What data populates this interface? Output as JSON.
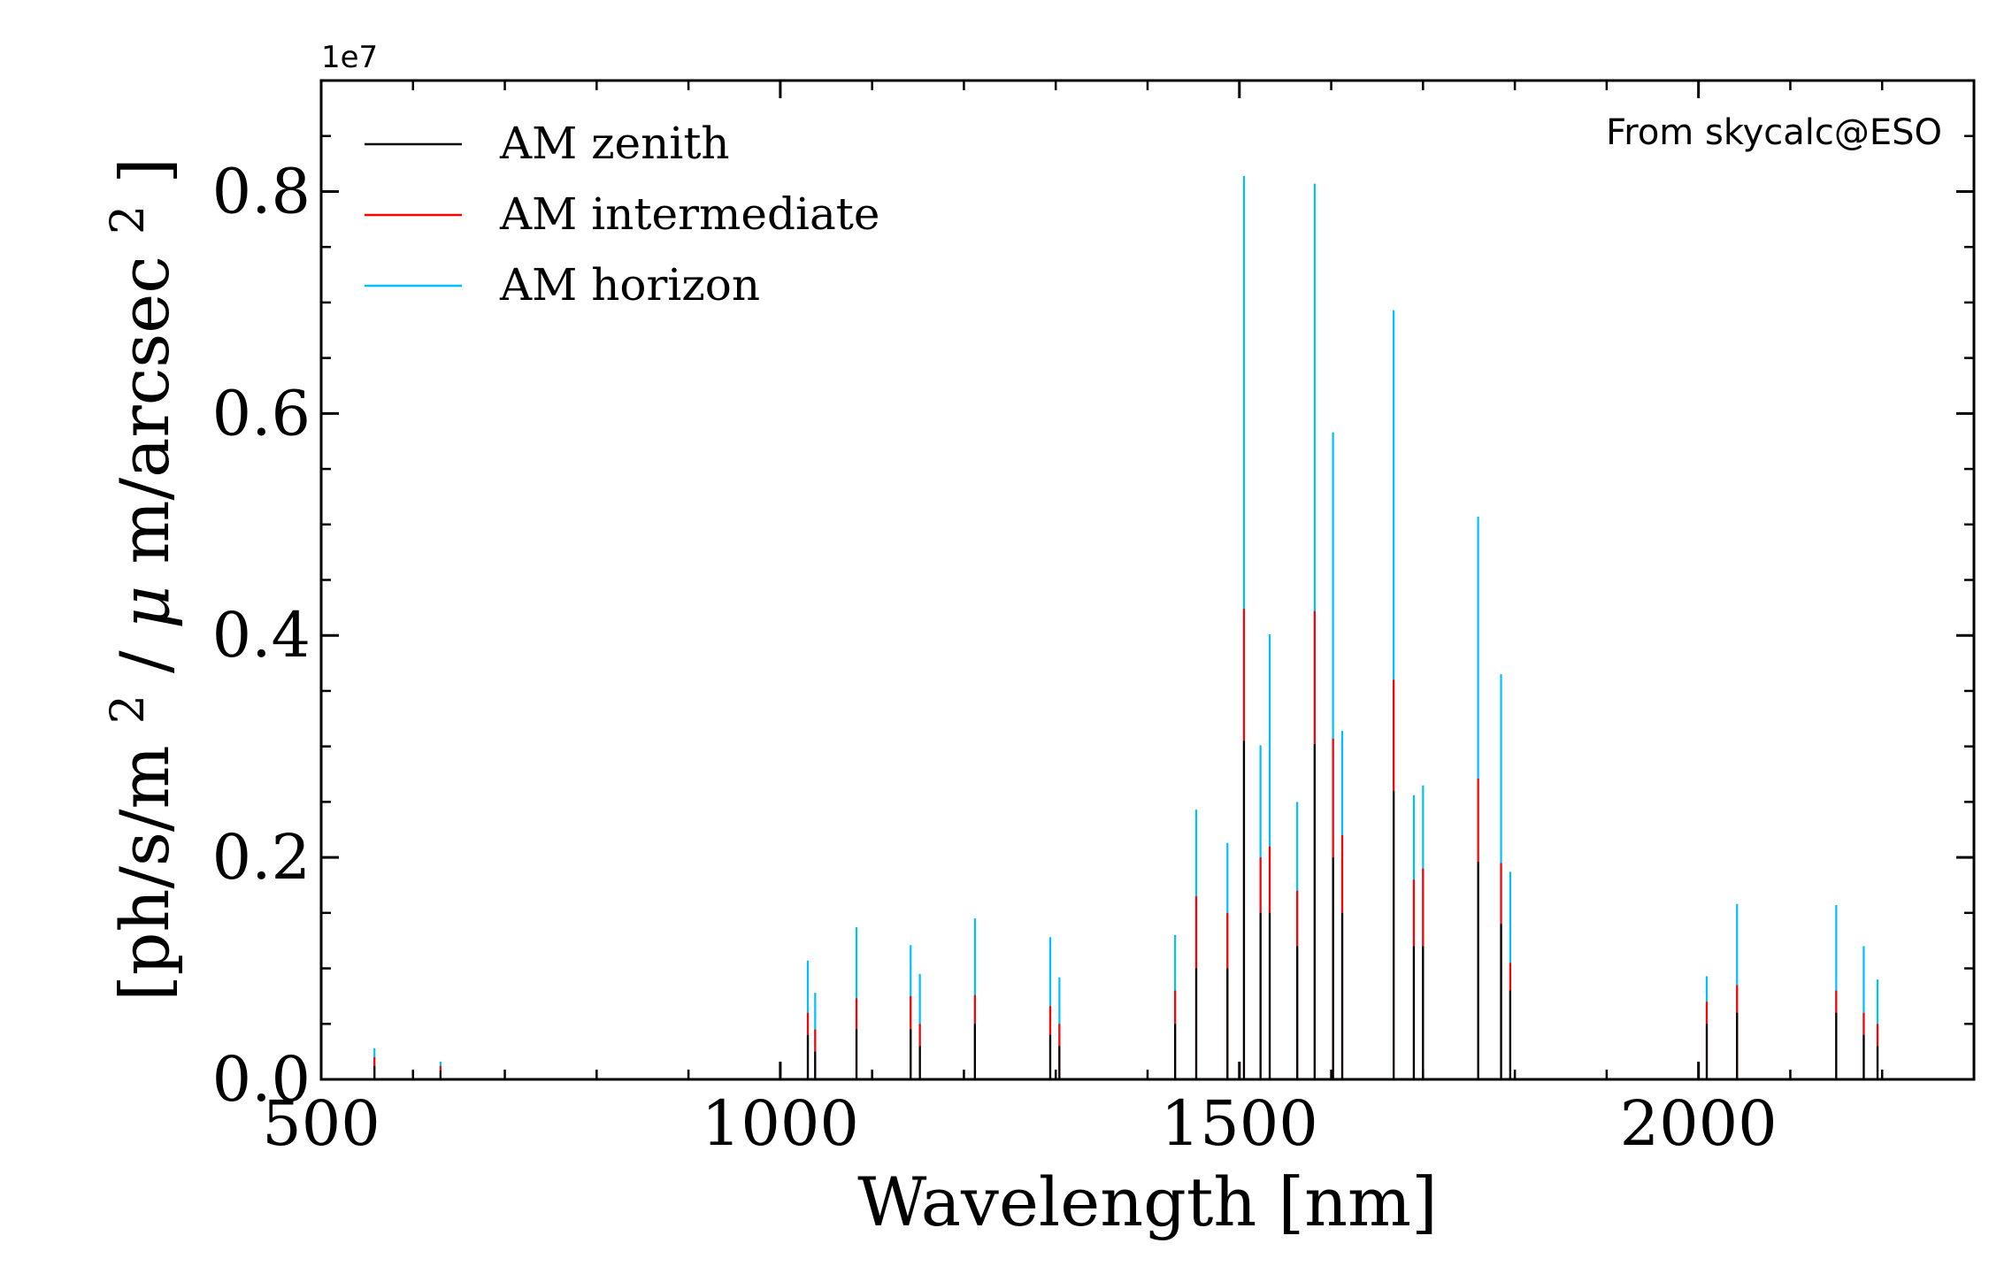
{
  "chart_data": {
    "type": "line",
    "xlabel": "Wavelength [nm]",
    "ylabel_parts": [
      "[ph/s/m",
      "2",
      "/",
      "μ",
      "m/arcsec",
      "2",
      "]"
    ],
    "offset_text": "1e7",
    "annotation": "From skycalc@ESO",
    "xlim": [
      500,
      2300
    ],
    "ylim": [
      0,
      0.9
    ],
    "y_scale_factor": 10000000,
    "xticks": [
      500,
      1000,
      1500,
      2000
    ],
    "xtick_labels": [
      "500",
      "1000",
      "1500",
      "2000"
    ],
    "yticks": [
      0.0,
      0.2,
      0.4,
      0.6,
      0.8
    ],
    "ytick_labels": [
      "0.0",
      "0.2",
      "0.4",
      "0.6",
      "0.8"
    ],
    "grid": false,
    "legend_position": "top-left",
    "series": [
      {
        "name": "AM zenith",
        "color": "#000000"
      },
      {
        "name": "AM intermediate",
        "color": "#ff0000"
      },
      {
        "name": "AM horizon",
        "color": "#00bfff"
      }
    ],
    "lines": [
      {
        "x": 558,
        "zenith": 0.012,
        "intermediate": 0.02,
        "horizon": 0.028
      },
      {
        "x": 630,
        "zenith": 0.008,
        "intermediate": 0.012,
        "horizon": 0.016
      },
      {
        "x": 1030,
        "zenith": 0.04,
        "intermediate": 0.06,
        "horizon": 0.107
      },
      {
        "x": 1038,
        "zenith": 0.025,
        "intermediate": 0.045,
        "horizon": 0.078
      },
      {
        "x": 1083,
        "zenith": 0.045,
        "intermediate": 0.073,
        "horizon": 0.137
      },
      {
        "x": 1142,
        "zenith": 0.045,
        "intermediate": 0.075,
        "horizon": 0.121
      },
      {
        "x": 1152,
        "zenith": 0.03,
        "intermediate": 0.05,
        "horizon": 0.095
      },
      {
        "x": 1212,
        "zenith": 0.05,
        "intermediate": 0.076,
        "horizon": 0.145
      },
      {
        "x": 1294,
        "zenith": 0.04,
        "intermediate": 0.066,
        "horizon": 0.128
      },
      {
        "x": 1304,
        "zenith": 0.03,
        "intermediate": 0.05,
        "horizon": 0.092
      },
      {
        "x": 1430,
        "zenith": 0.05,
        "intermediate": 0.08,
        "horizon": 0.13
      },
      {
        "x": 1453,
        "zenith": 0.1,
        "intermediate": 0.165,
        "horizon": 0.243
      },
      {
        "x": 1487,
        "zenith": 0.1,
        "intermediate": 0.15,
        "horizon": 0.213
      },
      {
        "x": 1505,
        "zenith": 0.305,
        "intermediate": 0.424,
        "horizon": 0.814
      },
      {
        "x": 1523,
        "zenith": 0.15,
        "intermediate": 0.2,
        "horizon": 0.301
      },
      {
        "x": 1533,
        "zenith": 0.15,
        "intermediate": 0.21,
        "horizon": 0.401
      },
      {
        "x": 1563,
        "zenith": 0.12,
        "intermediate": 0.17,
        "horizon": 0.25
      },
      {
        "x": 1582,
        "zenith": 0.302,
        "intermediate": 0.422,
        "horizon": 0.807
      },
      {
        "x": 1602,
        "zenith": 0.2,
        "intermediate": 0.307,
        "horizon": 0.583
      },
      {
        "x": 1612,
        "zenith": 0.15,
        "intermediate": 0.22,
        "horizon": 0.314
      },
      {
        "x": 1668,
        "zenith": 0.26,
        "intermediate": 0.36,
        "horizon": 0.693
      },
      {
        "x": 1690,
        "zenith": 0.12,
        "intermediate": 0.18,
        "horizon": 0.256
      },
      {
        "x": 1700,
        "zenith": 0.12,
        "intermediate": 0.19,
        "horizon": 0.265
      },
      {
        "x": 1760,
        "zenith": 0.196,
        "intermediate": 0.271,
        "horizon": 0.507
      },
      {
        "x": 1785,
        "zenith": 0.14,
        "intermediate": 0.195,
        "horizon": 0.365
      },
      {
        "x": 1795,
        "zenith": 0.08,
        "intermediate": 0.105,
        "horizon": 0.187
      },
      {
        "x": 2009,
        "zenith": 0.05,
        "intermediate": 0.07,
        "horizon": 0.093
      },
      {
        "x": 2042,
        "zenith": 0.06,
        "intermediate": 0.085,
        "horizon": 0.158
      },
      {
        "x": 2150,
        "zenith": 0.06,
        "intermediate": 0.08,
        "horizon": 0.157
      },
      {
        "x": 2180,
        "zenith": 0.04,
        "intermediate": 0.06,
        "horizon": 0.12
      },
      {
        "x": 2195,
        "zenith": 0.03,
        "intermediate": 0.05,
        "horizon": 0.09
      }
    ]
  }
}
